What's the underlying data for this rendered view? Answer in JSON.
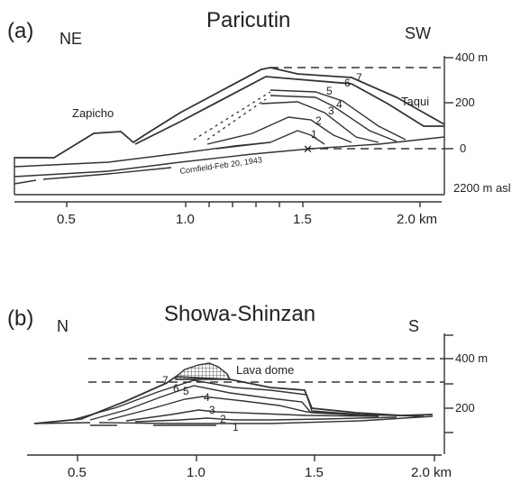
{
  "panel_a": {
    "letter": "(a)",
    "title": "Paricutin",
    "dir_left": "NE",
    "dir_right": "SW",
    "place_left": "Zapicho",
    "place_right": "Taqui",
    "cornfield": "Cornfield-Feb 20, 1943",
    "y_ticks": [
      "400 m",
      "200",
      "0",
      "2200 m asl"
    ],
    "x_ticks": [
      "0.5",
      "1.0",
      "1.5",
      "2.0 km"
    ],
    "stage_numbers": [
      "1",
      "2",
      "3",
      "4",
      "5",
      "6",
      "7"
    ]
  },
  "panel_b": {
    "letter": "(b)",
    "title": "Showa-Shinzan",
    "dir_left": "N",
    "dir_right": "S",
    "dome_label": "Lava dome",
    "y_ticks": [
      "400 m",
      "200"
    ],
    "x_ticks": [
      "0.5",
      "1.0",
      "1.5",
      "2.0 km"
    ],
    "stage_numbers": [
      "1",
      "2",
      "3",
      "4",
      "5",
      "6",
      "7"
    ]
  }
}
